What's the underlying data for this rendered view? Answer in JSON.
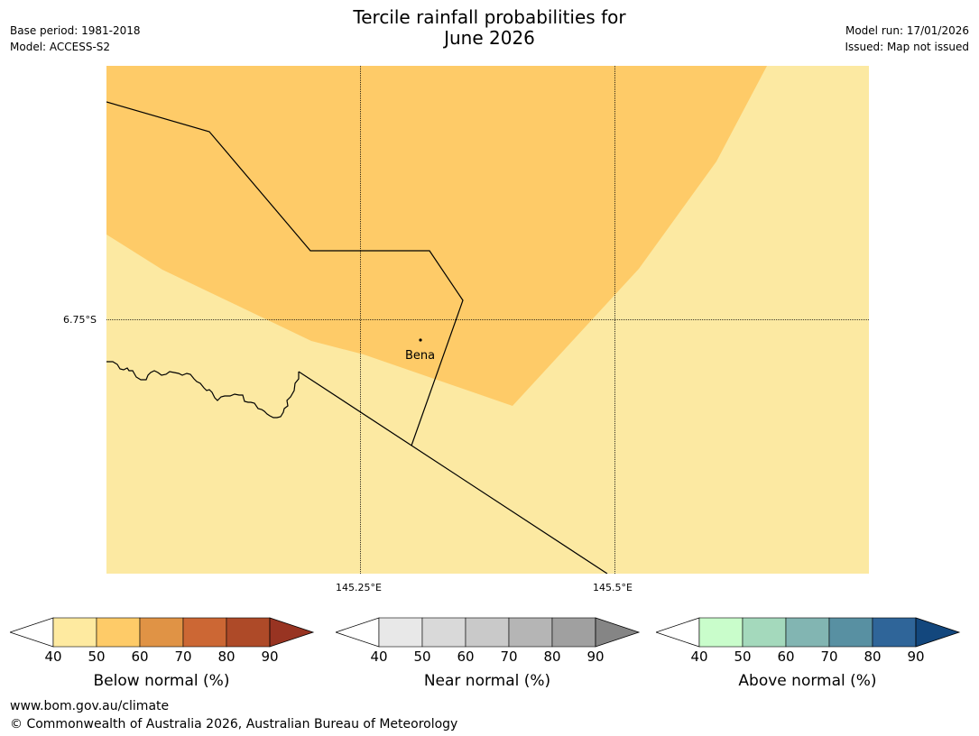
{
  "title": {
    "line1": "Tercile rainfall probabilities for",
    "line2": "June 2026"
  },
  "meta_left": {
    "base_period": "Base period: 1981-2018",
    "model": "Model: ACCESS-S2"
  },
  "meta_right": {
    "model_run": "Model run: 17/01/2026",
    "issued": "Issued: Map not issued"
  },
  "map": {
    "place_label": "Bena",
    "lat_label": "6.75°S",
    "lon_labels": [
      "145.25°E",
      "145.5°E"
    ],
    "colors": {
      "below_50": "#fecb68",
      "below_40": "#fce9a2"
    }
  },
  "legends": [
    {
      "title": "Below normal (%)",
      "ticks": [
        "40",
        "50",
        "60",
        "70",
        "80",
        "90"
      ],
      "colors": [
        "#ffffff",
        "#feeaa0",
        "#fecb68",
        "#e09345",
        "#cc6734",
        "#ae4a28",
        "#983422"
      ]
    },
    {
      "title": "Near normal (%)",
      "ticks": [
        "40",
        "50",
        "60",
        "70",
        "80",
        "90"
      ],
      "colors": [
        "#ffffff",
        "#e8e8e8",
        "#d9d9d9",
        "#c9c9c9",
        "#b5b5b5",
        "#a0a0a0",
        "#858585"
      ]
    },
    {
      "title": "Above normal (%)",
      "ticks": [
        "40",
        "50",
        "60",
        "70",
        "80",
        "90"
      ],
      "colors": [
        "#ffffff",
        "#c9fdcb",
        "#a4d9bc",
        "#82b5b2",
        "#5890a2",
        "#2f6599",
        "#13477d"
      ]
    }
  ],
  "footer": {
    "url": "www.bom.gov.au/climate",
    "copyright": "© Commonwealth of Australia 2026, Australian Bureau of Meteorology"
  }
}
